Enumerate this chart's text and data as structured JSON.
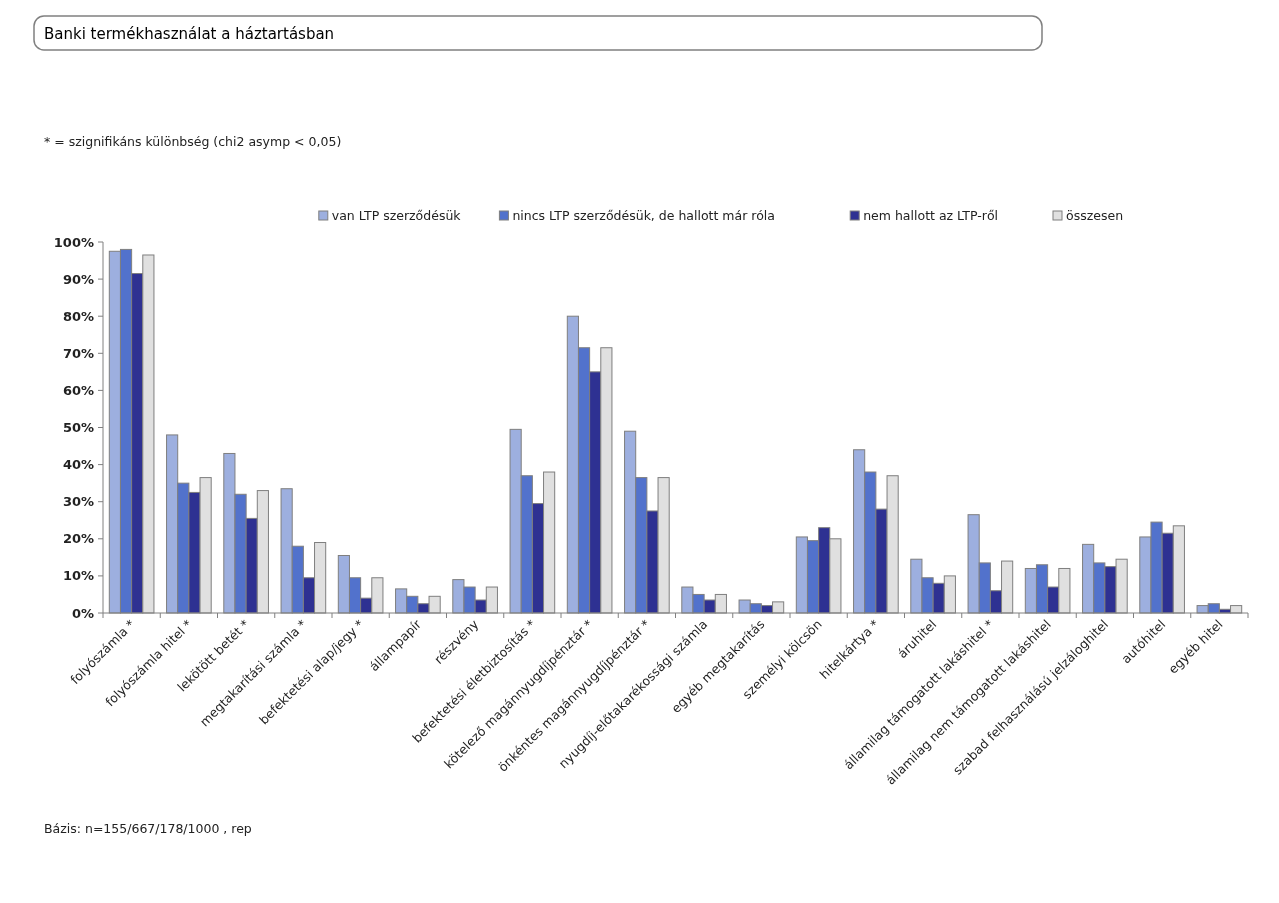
{
  "chart_data": {
    "type": "bar",
    "title": "Banki termékhasználat a háztartásban",
    "annotations": [
      "* = szignifikáns különbség (chi2 asymp  < 0,05)",
      "Bázis: n=155/667/178/1000  , rep"
    ],
    "categories": [
      "folyószámla *",
      "folyószámla hitel *",
      "lekötött betét *",
      "megtakarítási számla *",
      "befektetési alap/jegy *",
      "állampapír",
      "részvény",
      "befektetési életbiztosítás *",
      "kötelező magánnyugdíjpénztár *",
      "önkéntes magánnyugdíjpénztár *",
      "nyugdíj-előtakarékossági számla",
      "egyéb megtakarítás",
      "személyi kölcsön",
      "hitelkártya *",
      "áruhitel",
      "államilag támogatott lakáshitel *",
      "államilag nem támogatott lakáshitel",
      "szabad felhasználású jelzáloghitel",
      "autóhitel",
      "egyéb hitel"
    ],
    "series": [
      {
        "name": "van LTP szerződésük",
        "color": "#9dafdf",
        "values": [
          97.5,
          48,
          43,
          33.5,
          15.5,
          6.5,
          9,
          49.5,
          80,
          49,
          7,
          3.5,
          20.5,
          44,
          14.5,
          26.5,
          12,
          18.5,
          20.5,
          2
        ]
      },
      {
        "name": "nincs LTP szerződésük, de hallott már róla",
        "color": "#5272cc",
        "values": [
          98,
          35,
          32,
          18,
          9.5,
          4.5,
          7,
          37,
          71.5,
          36.5,
          5,
          2.5,
          19.5,
          38,
          9.5,
          13.5,
          13,
          13.5,
          24.5,
          2.5
        ]
      },
      {
        "name": "nem hallott az LTP-ről",
        "color": "#2e3192",
        "values": [
          91.5,
          32.5,
          25.5,
          9.5,
          4,
          2.5,
          3.5,
          29.5,
          65,
          27.5,
          3.5,
          2,
          23,
          28,
          8,
          6,
          7,
          12.5,
          21.5,
          1
        ]
      },
      {
        "name": "összesen",
        "color": "#e0e0e0",
        "values": [
          96.5,
          36.5,
          33,
          19,
          9.5,
          4.5,
          7,
          38,
          71.5,
          36.5,
          5,
          3,
          20,
          37,
          10,
          14,
          12,
          14.5,
          23.5,
          2
        ]
      }
    ],
    "ylim": [
      0,
      100
    ],
    "yticks": [
      {
        "value": 0,
        "label": "0%"
      },
      {
        "value": 10,
        "label": "10%"
      },
      {
        "value": 20,
        "label": "20%"
      },
      {
        "value": 30,
        "label": "30%"
      },
      {
        "value": 40,
        "label": "40%"
      },
      {
        "value": 50,
        "label": "50%"
      },
      {
        "value": 60,
        "label": "60%"
      },
      {
        "value": 70,
        "label": "70%"
      },
      {
        "value": 80,
        "label": "80%"
      },
      {
        "value": 90,
        "label": "90%"
      },
      {
        "value": 100,
        "label": "100%"
      }
    ],
    "grid": false,
    "legend": "top"
  }
}
